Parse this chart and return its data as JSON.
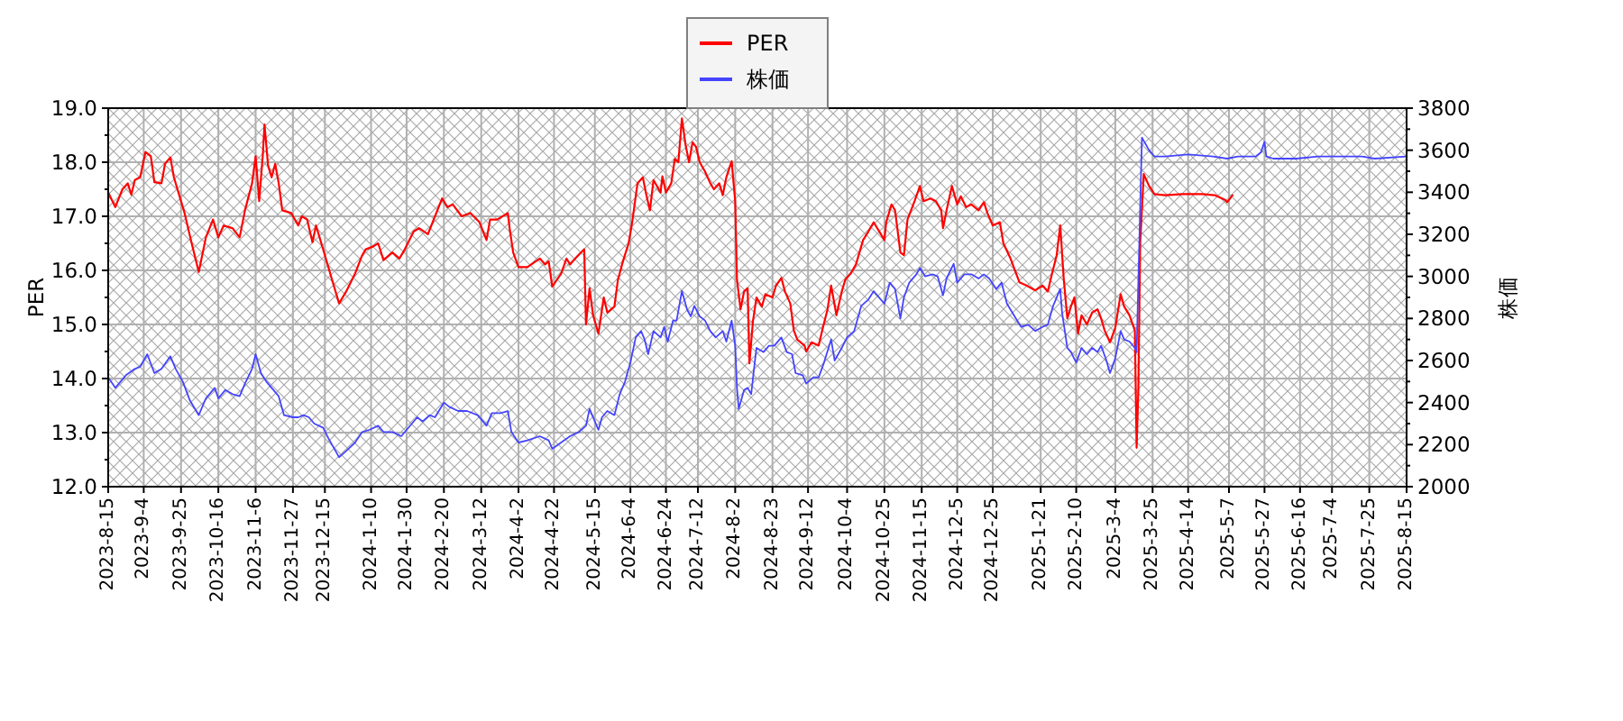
{
  "chart_data": {
    "type": "line",
    "ylabel": "PER",
    "y2label": "株価",
    "grid": true,
    "legend": "top",
    "xlim": [
      "2023-08-15",
      "2025-08-15"
    ],
    "xticks": [
      {
        "value": "2023-08-15",
        "label": "2023-8-15"
      },
      {
        "value": "2023-09-04",
        "label": "2023-9-4"
      },
      {
        "value": "2023-09-25",
        "label": "2023-9-25"
      },
      {
        "value": "2023-10-16",
        "label": "2023-10-16"
      },
      {
        "value": "2023-11-06",
        "label": "2023-11-6"
      },
      {
        "value": "2023-11-27",
        "label": "2023-11-27"
      },
      {
        "value": "2023-12-15",
        "label": "2023-12-15"
      },
      {
        "value": "2024-01-10",
        "label": "2024-1-10"
      },
      {
        "value": "2024-01-30",
        "label": "2024-1-30"
      },
      {
        "value": "2024-02-20",
        "label": "2024-2-20"
      },
      {
        "value": "2024-03-12",
        "label": "2024-3-12"
      },
      {
        "value": "2024-04-02",
        "label": "2024-4-2"
      },
      {
        "value": "2024-04-22",
        "label": "2024-4-22"
      },
      {
        "value": "2024-05-15",
        "label": "2024-5-15"
      },
      {
        "value": "2024-06-04",
        "label": "2024-6-4"
      },
      {
        "value": "2024-06-24",
        "label": "2024-6-24"
      },
      {
        "value": "2024-07-12",
        "label": "2024-7-12"
      },
      {
        "value": "2024-08-02",
        "label": "2024-8-2"
      },
      {
        "value": "2024-08-23",
        "label": "2024-8-23"
      },
      {
        "value": "2024-09-12",
        "label": "2024-9-12"
      },
      {
        "value": "2024-10-04",
        "label": "2024-10-4"
      },
      {
        "value": "2024-10-25",
        "label": "2024-10-25"
      },
      {
        "value": "2024-11-15",
        "label": "2024-11-15"
      },
      {
        "value": "2024-12-05",
        "label": "2024-12-5"
      },
      {
        "value": "2024-12-25",
        "label": "2024-12-25"
      },
      {
        "value": "2025-01-21",
        "label": "2025-1-21"
      },
      {
        "value": "2025-02-10",
        "label": "2025-2-10"
      },
      {
        "value": "2025-03-04",
        "label": "2025-3-4"
      },
      {
        "value": "2025-03-25",
        "label": "2025-3-25"
      },
      {
        "value": "2025-04-14",
        "label": "2025-4-14"
      },
      {
        "value": "2025-05-07",
        "label": "2025-5-7"
      },
      {
        "value": "2025-05-27",
        "label": "2025-5-27"
      },
      {
        "value": "2025-06-16",
        "label": "2025-6-16"
      },
      {
        "value": "2025-07-04",
        "label": "2025-7-4"
      },
      {
        "value": "2025-07-25",
        "label": "2025-7-25"
      },
      {
        "value": "2025-08-15",
        "label": "2025-8-15"
      }
    ],
    "ylim": [
      12,
      19
    ],
    "yticks": [
      {
        "value": 12,
        "label": "12.0"
      },
      {
        "value": 12.5,
        "label": null
      },
      {
        "value": 13,
        "label": "13.0"
      },
      {
        "value": 13.5,
        "label": null
      },
      {
        "value": 14,
        "label": "14.0"
      },
      {
        "value": 14.5,
        "label": null
      },
      {
        "value": 15,
        "label": "15.0"
      },
      {
        "value": 15.5,
        "label": null
      },
      {
        "value": 16,
        "label": "16.0"
      },
      {
        "value": 16.5,
        "label": null
      },
      {
        "value": 17,
        "label": "17.0"
      },
      {
        "value": 17.5,
        "label": null
      },
      {
        "value": 18,
        "label": "18.0"
      },
      {
        "value": 18.5,
        "label": null
      },
      {
        "value": 19,
        "label": "19.0"
      }
    ],
    "y2lim": [
      2000,
      3800
    ],
    "y2ticks": [
      2000,
      {
        "value": 2100,
        "label": null
      },
      2200,
      {
        "value": 2300,
        "label": null
      },
      2400,
      {
        "value": 2500,
        "label": null
      },
      2600,
      {
        "value": 2700,
        "label": null
      },
      2800,
      {
        "value": 2900,
        "label": null
      },
      3000,
      {
        "value": 3100,
        "label": null
      },
      3200,
      {
        "value": 3300,
        "label": null
      },
      3400,
      {
        "value": 3500,
        "label": null
      },
      3600,
      {
        "value": 3700,
        "label": null
      },
      3800
    ],
    "series": [
      {
        "name": "PER",
        "color": "#ff0000",
        "x": [
          "2023-08-15",
          "2023-08-19",
          "2023-08-23",
          "2023-08-26",
          "2023-08-28",
          "2023-08-30",
          "2023-09-02",
          "2023-09-05",
          "2023-09-08",
          "2023-09-10",
          "2023-09-14",
          "2023-09-16",
          "2023-09-19",
          "2023-09-21",
          "2023-09-24",
          "2023-09-27",
          "2023-10-01",
          "2023-10-05",
          "2023-10-09",
          "2023-10-13",
          "2023-10-16",
          "2023-10-19",
          "2023-10-24",
          "2023-10-28",
          "2023-10-31",
          "2023-11-04",
          "2023-11-06",
          "2023-11-08",
          "2023-11-10",
          "2023-11-11",
          "2023-11-13",
          "2023-11-15",
          "2023-11-17",
          "2023-11-19",
          "2023-11-21",
          "2023-11-26",
          "2023-11-30",
          "2023-12-02",
          "2023-12-05",
          "2023-12-08",
          "2023-12-10",
          "2023-12-12",
          "2023-12-15",
          "2023-12-19",
          "2023-12-23",
          "2023-12-27",
          "2024-01-01",
          "2024-01-05",
          "2024-01-07",
          "2024-01-11",
          "2024-01-14",
          "2024-01-17",
          "2024-01-22",
          "2024-01-26",
          "2024-01-29",
          "2024-02-03",
          "2024-02-06",
          "2024-02-11",
          "2024-02-15",
          "2024-02-19",
          "2024-02-22",
          "2024-02-25",
          "2024-03-01",
          "2024-03-06",
          "2024-03-11",
          "2024-03-15",
          "2024-03-17",
          "2024-03-21",
          "2024-03-27",
          "2024-03-28",
          "2024-03-30",
          "2024-04-02",
          "2024-04-07",
          "2024-04-14",
          "2024-04-17",
          "2024-04-19",
          "2024-04-21",
          "2024-04-26",
          "2024-04-29",
          "2024-05-01",
          "2024-05-04",
          "2024-05-09",
          "2024-05-10",
          "2024-05-12",
          "2024-05-14",
          "2024-05-17",
          "2024-05-20",
          "2024-05-22",
          "2024-05-26",
          "2024-05-28",
          "2024-05-31",
          "2024-06-03",
          "2024-06-05",
          "2024-06-08",
          "2024-06-11",
          "2024-06-13",
          "2024-06-15",
          "2024-06-17",
          "2024-06-21",
          "2024-06-22",
          "2024-06-24",
          "2024-06-27",
          "2024-06-29",
          "2024-07-01",
          "2024-07-03",
          "2024-07-05",
          "2024-07-07",
          "2024-07-09",
          "2024-07-11",
          "2024-07-13",
          "2024-07-16",
          "2024-07-19",
          "2024-07-21",
          "2024-07-24",
          "2024-07-26",
          "2024-07-28",
          "2024-07-31",
          "2024-08-02",
          "2024-08-03",
          "2024-08-05",
          "2024-08-07",
          "2024-08-09",
          "2024-08-10",
          "2024-08-12",
          "2024-08-14",
          "2024-08-17",
          "2024-08-19",
          "2024-08-23",
          "2024-08-25",
          "2024-08-28",
          "2024-08-30",
          "2024-09-02",
          "2024-09-04",
          "2024-09-06",
          "2024-09-10",
          "2024-09-11",
          "2024-09-14",
          "2024-09-18",
          "2024-09-20",
          "2024-09-23",
          "2024-09-25",
          "2024-09-28",
          "2024-10-01",
          "2024-10-03",
          "2024-10-06",
          "2024-10-09",
          "2024-10-13",
          "2024-10-16",
          "2024-10-19",
          "2024-10-21",
          "2024-10-25",
          "2024-10-26",
          "2024-10-29",
          "2024-10-31",
          "2024-11-03",
          "2024-11-05",
          "2024-11-07",
          "2024-11-11",
          "2024-11-14",
          "2024-11-16",
          "2024-11-20",
          "2024-11-23",
          "2024-11-26",
          "2024-11-27",
          "2024-11-29",
          "2024-12-02",
          "2024-12-05",
          "2024-12-07",
          "2024-12-10",
          "2024-12-13",
          "2024-12-17",
          "2024-12-20",
          "2024-12-22",
          "2024-12-25",
          "2024-12-29",
          "2024-12-31",
          "2025-01-04",
          "2025-01-09",
          "2025-01-13",
          "2025-01-18",
          "2025-01-22",
          "2025-01-25",
          "2025-01-27",
          "2025-01-30",
          "2025-02-01",
          "2025-02-03",
          "2025-02-05",
          "2025-02-07",
          "2025-02-09",
          "2025-02-11",
          "2025-02-13",
          "2025-02-16",
          "2025-02-19",
          "2025-02-22",
          "2025-02-24",
          "2025-02-26",
          "2025-03-01",
          "2025-03-04",
          "2025-03-07",
          "2025-03-09",
          "2025-03-12",
          "2025-03-15",
          "2025-03-16",
          "2025-03-17",
          "2025-03-18",
          "2025-03-20",
          "2025-03-23",
          "2025-03-26",
          "2025-04-01",
          "2025-04-11",
          "2025-04-22",
          "2025-04-29",
          "2025-05-05",
          "2025-05-06",
          "2025-05-09"
        ],
        "values": [
          17.44,
          17.17,
          17.5,
          17.61,
          17.4,
          17.67,
          17.72,
          18.19,
          18.11,
          17.63,
          17.61,
          17.97,
          18.09,
          17.72,
          17.39,
          17.06,
          16.5,
          15.97,
          16.61,
          16.94,
          16.61,
          16.83,
          16.78,
          16.61,
          17.11,
          17.61,
          18.11,
          17.28,
          18.11,
          18.7,
          17.94,
          17.72,
          17.97,
          17.61,
          17.11,
          17.06,
          16.83,
          17.0,
          16.94,
          16.52,
          16.83,
          16.61,
          16.28,
          15.83,
          15.39,
          15.61,
          15.94,
          16.28,
          16.39,
          16.44,
          16.5,
          16.19,
          16.33,
          16.22,
          16.39,
          16.72,
          16.78,
          16.67,
          17.0,
          17.33,
          17.17,
          17.22,
          17.0,
          17.06,
          16.89,
          16.56,
          16.94,
          16.94,
          17.06,
          16.78,
          16.33,
          16.06,
          16.06,
          16.22,
          16.11,
          16.17,
          15.7,
          15.94,
          16.22,
          16.11,
          16.22,
          16.39,
          15.0,
          15.67,
          15.17,
          14.83,
          15.5,
          15.22,
          15.33,
          15.83,
          16.19,
          16.5,
          16.89,
          17.61,
          17.72,
          17.39,
          17.11,
          17.67,
          17.44,
          17.74,
          17.44,
          17.61,
          18.06,
          18.0,
          18.81,
          18.33,
          18.0,
          18.37,
          18.28,
          18.0,
          17.83,
          17.61,
          17.5,
          17.61,
          17.39,
          17.72,
          18.02,
          17.28,
          15.83,
          15.28,
          15.61,
          15.67,
          14.28,
          15.06,
          15.5,
          15.33,
          15.56,
          15.5,
          15.72,
          15.86,
          15.61,
          15.39,
          14.89,
          14.72,
          14.61,
          14.5,
          14.67,
          14.61,
          14.89,
          15.28,
          15.72,
          15.17,
          15.61,
          15.83,
          15.94,
          16.11,
          16.56,
          16.72,
          16.89,
          16.78,
          16.56,
          16.89,
          17.22,
          17.11,
          16.33,
          16.28,
          16.94,
          17.28,
          17.56,
          17.28,
          17.33,
          17.28,
          17.11,
          16.78,
          17.11,
          17.56,
          17.22,
          17.37,
          17.17,
          17.22,
          17.11,
          17.26,
          17.06,
          16.83,
          16.89,
          16.5,
          16.22,
          15.78,
          15.72,
          15.63,
          15.72,
          15.61,
          15.89,
          16.28,
          16.83,
          15.83,
          15.11,
          15.33,
          15.5,
          14.83,
          15.17,
          15.0,
          15.22,
          15.28,
          15.11,
          14.89,
          14.67,
          14.94,
          15.56,
          15.33,
          15.17,
          14.89,
          12.72,
          13.83,
          16.5,
          17.78,
          17.56,
          17.41,
          17.39,
          17.41,
          17.41,
          17.39,
          17.3,
          17.26,
          17.39
        ]
      },
      {
        "name": "株価",
        "color": "#4444ff",
        "axis": "y2",
        "x": [
          "2023-08-15",
          "2023-08-19",
          "2023-08-25",
          "2023-08-30",
          "2023-09-02",
          "2023-09-06",
          "2023-09-10",
          "2023-09-14",
          "2023-09-19",
          "2023-09-22",
          "2023-09-26",
          "2023-09-30",
          "2023-10-05",
          "2023-10-09",
          "2023-10-14",
          "2023-10-16",
          "2023-10-20",
          "2023-10-24",
          "2023-10-28",
          "2023-10-31",
          "2023-11-04",
          "2023-11-06",
          "2023-11-09",
          "2023-11-12",
          "2023-11-16",
          "2023-11-19",
          "2023-11-22",
          "2023-11-27",
          "2023-11-30",
          "2023-12-03",
          "2023-12-06",
          "2023-12-09",
          "2023-12-14",
          "2023-12-17",
          "2023-12-23",
          "2023-12-27",
          "2024-01-01",
          "2024-01-05",
          "2024-01-09",
          "2024-01-14",
          "2024-01-17",
          "2024-01-22",
          "2024-01-27",
          "2024-01-30",
          "2024-02-05",
          "2024-02-08",
          "2024-02-12",
          "2024-02-15",
          "2024-02-20",
          "2024-02-23",
          "2024-02-28",
          "2024-03-04",
          "2024-03-10",
          "2024-03-15",
          "2024-03-18",
          "2024-03-23",
          "2024-03-27",
          "2024-03-29",
          "2024-04-02",
          "2024-04-07",
          "2024-04-14",
          "2024-04-19",
          "2024-04-21",
          "2024-04-26",
          "2024-05-01",
          "2024-05-06",
          "2024-05-10",
          "2024-05-12",
          "2024-05-17",
          "2024-05-19",
          "2024-05-22",
          "2024-05-26",
          "2024-05-29",
          "2024-06-01",
          "2024-06-04",
          "2024-06-07",
          "2024-06-10",
          "2024-06-12",
          "2024-06-14",
          "2024-06-17",
          "2024-06-21",
          "2024-06-23",
          "2024-06-25",
          "2024-06-28",
          "2024-06-30",
          "2024-07-03",
          "2024-07-06",
          "2024-07-08",
          "2024-07-10",
          "2024-07-13",
          "2024-07-16",
          "2024-07-19",
          "2024-07-22",
          "2024-07-26",
          "2024-07-28",
          "2024-07-31",
          "2024-08-02",
          "2024-08-03",
          "2024-08-04",
          "2024-08-07",
          "2024-08-09",
          "2024-08-11",
          "2024-08-13",
          "2024-08-14",
          "2024-08-18",
          "2024-08-21",
          "2024-08-24",
          "2024-08-28",
          "2024-08-31",
          "2024-09-03",
          "2024-09-05",
          "2024-09-09",
          "2024-09-11",
          "2024-09-15",
          "2024-09-18",
          "2024-09-21",
          "2024-09-25",
          "2024-09-27",
          "2024-10-01",
          "2024-10-04",
          "2024-10-08",
          "2024-10-12",
          "2024-10-16",
          "2024-10-19",
          "2024-10-22",
          "2024-10-25",
          "2024-10-28",
          "2024-10-31",
          "2024-11-03",
          "2024-11-05",
          "2024-11-08",
          "2024-11-12",
          "2024-11-14",
          "2024-11-17",
          "2024-11-21",
          "2024-11-24",
          "2024-11-27",
          "2024-11-29",
          "2024-12-03",
          "2024-12-05",
          "2024-12-09",
          "2024-12-13",
          "2024-12-17",
          "2024-12-20",
          "2024-12-23",
          "2024-12-27",
          "2024-12-30",
          "2025-01-02",
          "2025-01-07",
          "2025-01-10",
          "2025-01-14",
          "2025-01-18",
          "2025-01-22",
          "2025-01-25",
          "2025-01-28",
          "2025-02-01",
          "2025-02-02",
          "2025-02-05",
          "2025-02-07",
          "2025-02-10",
          "2025-02-13",
          "2025-02-16",
          "2025-02-19",
          "2025-02-22",
          "2025-02-24",
          "2025-02-27",
          "2025-03-01",
          "2025-03-04",
          "2025-03-07",
          "2025-03-09",
          "2025-03-12",
          "2025-03-15",
          "2025-03-16",
          "2025-03-17",
          "2025-03-19",
          "2025-03-23",
          "2025-03-26",
          "2025-04-01",
          "2025-04-14",
          "2025-04-28",
          "2025-05-06",
          "2025-05-12",
          "2025-05-22",
          "2025-05-25",
          "2025-05-27",
          "2025-05-28",
          "2025-06-01",
          "2025-06-14",
          "2025-06-26",
          "2025-07-08",
          "2025-07-21",
          "2025-07-28",
          "2025-08-15"
        ],
        "values": [
          2520,
          2470,
          2530,
          2560,
          2570,
          2630,
          2540,
          2560,
          2620,
          2560,
          2500,
          2410,
          2340,
          2420,
          2470,
          2420,
          2460,
          2440,
          2430,
          2490,
          2560,
          2630,
          2540,
          2500,
          2460,
          2430,
          2340,
          2330,
          2330,
          2340,
          2330,
          2300,
          2280,
          2230,
          2140,
          2170,
          2210,
          2260,
          2270,
          2290,
          2260,
          2260,
          2240,
          2270,
          2330,
          2310,
          2340,
          2330,
          2400,
          2380,
          2360,
          2360,
          2340,
          2290,
          2350,
          2350,
          2360,
          2260,
          2210,
          2220,
          2240,
          2220,
          2180,
          2210,
          2240,
          2260,
          2290,
          2370,
          2270,
          2330,
          2360,
          2340,
          2440,
          2500,
          2590,
          2710,
          2740,
          2700,
          2630,
          2740,
          2710,
          2760,
          2690,
          2790,
          2790,
          2930,
          2840,
          2810,
          2860,
          2810,
          2790,
          2740,
          2710,
          2740,
          2690,
          2790,
          2670,
          2470,
          2370,
          2460,
          2470,
          2440,
          2590,
          2660,
          2640,
          2670,
          2670,
          2710,
          2640,
          2630,
          2540,
          2530,
          2490,
          2520,
          2520,
          2590,
          2700,
          2600,
          2660,
          2710,
          2740,
          2860,
          2890,
          2930,
          2900,
          2870,
          2970,
          2940,
          2800,
          2900,
          2970,
          3010,
          3040,
          3000,
          3010,
          3000,
          2910,
          2990,
          3060,
          2970,
          3010,
          3010,
          2990,
          3010,
          2990,
          2940,
          2970,
          2870,
          2800,
          2760,
          2770,
          2740,
          2760,
          2770,
          2860,
          2940,
          2830,
          2660,
          2640,
          2590,
          2660,
          2630,
          2660,
          2640,
          2670,
          2600,
          2540,
          2610,
          2740,
          2700,
          2690,
          2660,
          2640,
          2990,
          3660,
          3600,
          3570,
          3570,
          3580,
          3570,
          3560,
          3570,
          3570,
          3590,
          3640,
          3570,
          3560,
          3560,
          3570,
          3570,
          3570,
          3560,
          3570
        ]
      }
    ]
  }
}
